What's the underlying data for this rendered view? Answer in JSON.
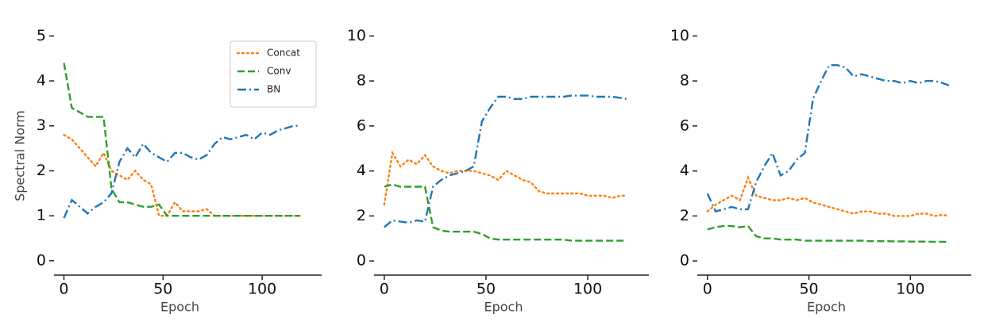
{
  "chart_data": [
    {
      "type": "line",
      "ylabel": "Spectral Norm",
      "xlabel": "Epoch",
      "legend": "upper right",
      "x": [
        0,
        4,
        8,
        12,
        16,
        20,
        24,
        28,
        32,
        36,
        40,
        44,
        48,
        52,
        56,
        60,
        64,
        68,
        72,
        76,
        80,
        84,
        88,
        92,
        96,
        100,
        104,
        108,
        112,
        116,
        119
      ],
      "xlim": [
        -5,
        130
      ],
      "xticks": [
        0,
        50,
        100
      ],
      "ylim": [
        -0.32,
        5.2
      ],
      "yticks": [
        0,
        1,
        2,
        3,
        4,
        5
      ],
      "series": [
        {
          "name": "Concat",
          "color": "#ff7f0e",
          "linestyle": "dotted",
          "values": [
            2.8,
            2.7,
            2.5,
            2.3,
            2.1,
            2.4,
            2.0,
            1.9,
            1.8,
            2.0,
            1.8,
            1.7,
            1.0,
            1.0,
            1.3,
            1.1,
            1.1,
            1.1,
            1.15,
            1.0,
            1.0,
            1.0,
            1.0,
            1.0,
            1.0,
            1.0,
            1.0,
            1.0,
            1.0,
            1.0,
            1.0
          ]
        },
        {
          "name": "Conv",
          "color": "#2ca02c",
          "linestyle": "dashed",
          "values": [
            4.4,
            3.4,
            3.3,
            3.2,
            3.2,
            3.2,
            1.6,
            1.3,
            1.3,
            1.25,
            1.2,
            1.2,
            1.25,
            1.0,
            1.0,
            1.0,
            1.0,
            1.0,
            1.0,
            1.0,
            1.0,
            1.0,
            1.0,
            1.0,
            1.0,
            1.0,
            1.0,
            1.0,
            1.0,
            1.0,
            1.0
          ]
        },
        {
          "name": "BN",
          "color": "#1f77b4",
          "linestyle": "dashdot",
          "values": [
            0.95,
            1.35,
            1.2,
            1.05,
            1.2,
            1.3,
            1.5,
            2.2,
            2.5,
            2.3,
            2.6,
            2.4,
            2.3,
            2.2,
            2.4,
            2.4,
            2.3,
            2.25,
            2.35,
            2.6,
            2.75,
            2.7,
            2.75,
            2.8,
            2.7,
            2.85,
            2.8,
            2.9,
            2.95,
            3.0,
            3.0
          ]
        }
      ]
    },
    {
      "type": "line",
      "xlabel": "Epoch",
      "x": [
        0,
        4,
        8,
        12,
        16,
        20,
        24,
        28,
        32,
        36,
        40,
        44,
        48,
        52,
        56,
        60,
        64,
        68,
        72,
        76,
        80,
        84,
        88,
        92,
        96,
        100,
        104,
        108,
        112,
        116,
        119
      ],
      "xlim": [
        -5,
        130
      ],
      "xticks": [
        0,
        50,
        100
      ],
      "ylim": [
        -0.63,
        10.4
      ],
      "yticks": [
        0,
        2,
        4,
        6,
        8,
        10
      ],
      "series": [
        {
          "color": "#ff7f0e",
          "linestyle": "dotted",
          "values": [
            2.5,
            4.8,
            4.2,
            4.5,
            4.3,
            4.7,
            4.2,
            4.0,
            3.9,
            4.0,
            4.0,
            4.0,
            3.9,
            3.8,
            3.6,
            4.0,
            3.8,
            3.6,
            3.5,
            3.1,
            3.0,
            3.0,
            3.0,
            3.0,
            3.0,
            2.9,
            2.9,
            2.9,
            2.8,
            2.9,
            2.9
          ]
        },
        {
          "color": "#2ca02c",
          "linestyle": "dashed",
          "values": [
            3.3,
            3.4,
            3.3,
            3.3,
            3.3,
            3.3,
            1.5,
            1.35,
            1.3,
            1.3,
            1.3,
            1.3,
            1.2,
            1.0,
            0.95,
            0.95,
            0.95,
            0.95,
            0.95,
            0.95,
            0.95,
            0.95,
            0.95,
            0.9,
            0.9,
            0.9,
            0.9,
            0.9,
            0.9,
            0.9,
            0.9
          ]
        },
        {
          "color": "#1f77b4",
          "linestyle": "dashdot",
          "values": [
            1.5,
            1.8,
            1.75,
            1.7,
            1.8,
            1.75,
            3.3,
            3.6,
            3.8,
            3.9,
            4.0,
            4.2,
            6.2,
            6.8,
            7.3,
            7.3,
            7.2,
            7.2,
            7.3,
            7.3,
            7.3,
            7.3,
            7.3,
            7.35,
            7.35,
            7.35,
            7.3,
            7.3,
            7.3,
            7.25,
            7.2
          ]
        }
      ]
    },
    {
      "type": "line",
      "xlabel": "Epoch",
      "x": [
        0,
        4,
        8,
        12,
        16,
        20,
        24,
        28,
        32,
        36,
        40,
        44,
        48,
        52,
        56,
        60,
        64,
        68,
        72,
        76,
        80,
        84,
        88,
        92,
        96,
        100,
        104,
        108,
        112,
        116,
        119
      ],
      "xlim": [
        -5,
        130
      ],
      "xticks": [
        0,
        50,
        100
      ],
      "ylim": [
        -0.63,
        10.4
      ],
      "yticks": [
        0,
        2,
        4,
        6,
        8,
        10
      ],
      "series": [
        {
          "color": "#ff7f0e",
          "linestyle": "dotted",
          "values": [
            2.2,
            2.5,
            2.7,
            2.9,
            2.7,
            3.7,
            2.9,
            2.8,
            2.7,
            2.7,
            2.8,
            2.7,
            2.8,
            2.6,
            2.5,
            2.4,
            2.3,
            2.2,
            2.1,
            2.2,
            2.2,
            2.1,
            2.1,
            2.0,
            2.0,
            2.0,
            2.1,
            2.1,
            2.0,
            2.05,
            2.0
          ]
        },
        {
          "color": "#2ca02c",
          "linestyle": "dashed",
          "values": [
            1.4,
            1.5,
            1.55,
            1.55,
            1.5,
            1.55,
            1.1,
            1.0,
            1.0,
            0.95,
            0.95,
            0.95,
            0.9,
            0.9,
            0.9,
            0.9,
            0.9,
            0.9,
            0.9,
            0.9,
            0.88,
            0.88,
            0.88,
            0.87,
            0.87,
            0.86,
            0.86,
            0.86,
            0.85,
            0.85,
            0.85
          ]
        },
        {
          "color": "#1f77b4",
          "linestyle": "dashdot",
          "values": [
            3.0,
            2.2,
            2.3,
            2.4,
            2.3,
            2.3,
            3.5,
            4.2,
            4.8,
            3.8,
            4.0,
            4.5,
            4.8,
            7.2,
            8.0,
            8.7,
            8.7,
            8.6,
            8.2,
            8.3,
            8.2,
            8.1,
            8.0,
            8.0,
            7.9,
            8.0,
            7.9,
            8.0,
            8.0,
            7.9,
            7.8
          ]
        }
      ]
    }
  ]
}
